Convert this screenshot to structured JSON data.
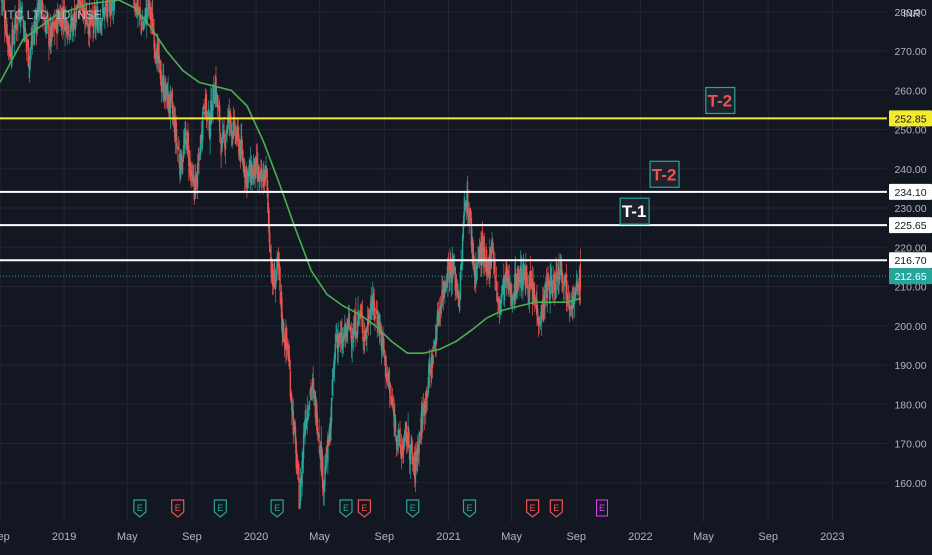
{
  "symbol_label": "ITC LTD, 1D, NSE",
  "currency": "INR",
  "colors": {
    "background": "#131722",
    "grid": "#242733",
    "up": "#26a69a",
    "down": "#ef5350",
    "ma": "#4caf50",
    "axis_text": "#b2b5be",
    "last_price": "#26a69a",
    "yellow": "#f5ea2b",
    "white": "#ffffff",
    "earnings_green": "#26a69a",
    "earnings_red": "#ef5350",
    "earnings_pink": "#e040fb"
  },
  "chart_data": {
    "type": "candlestick",
    "ylim": [
      150,
      283
    ],
    "y_ticks": [
      160,
      170,
      180,
      190,
      200,
      210,
      220,
      230,
      240,
      250,
      260,
      270,
      280
    ],
    "y_tick_labels": [
      "160.00",
      "170.00",
      "180.00",
      "190.00",
      "200.00",
      "210.00",
      "220.00",
      "230.00",
      "240.00",
      "250.00",
      "260.00",
      "270.00",
      "280.00"
    ],
    "x_range": [
      "2018-09-01",
      "2023-04-15"
    ],
    "x_ticks": [
      {
        "date": "2018-09-01",
        "label": "Sep"
      },
      {
        "date": "2019-01-01",
        "label": "2019"
      },
      {
        "date": "2019-05-01",
        "label": "May"
      },
      {
        "date": "2019-09-01",
        "label": "Sep"
      },
      {
        "date": "2020-01-01",
        "label": "2020"
      },
      {
        "date": "2020-05-01",
        "label": "May"
      },
      {
        "date": "2020-09-01",
        "label": "Sep"
      },
      {
        "date": "2021-01-01",
        "label": "2021"
      },
      {
        "date": "2021-05-01",
        "label": "May"
      },
      {
        "date": "2021-09-01",
        "label": "Sep"
      },
      {
        "date": "2022-01-01",
        "label": "2022"
      },
      {
        "date": "2022-05-01",
        "label": "May"
      },
      {
        "date": "2022-09-01",
        "label": "Sep"
      },
      {
        "date": "2023-01-01",
        "label": "2023"
      }
    ],
    "price_path": [
      [
        "2018-09-03",
        284
      ],
      [
        "2018-09-20",
        270
      ],
      [
        "2018-10-10",
        282
      ],
      [
        "2018-10-26",
        268
      ],
      [
        "2018-11-15",
        283
      ],
      [
        "2018-12-05",
        273
      ],
      [
        "2018-12-26",
        280
      ],
      [
        "2019-01-15",
        276
      ],
      [
        "2019-02-01",
        284
      ],
      [
        "2019-02-20",
        276
      ],
      [
        "2019-03-10",
        279
      ],
      [
        "2019-03-25",
        281
      ],
      [
        "2019-04-05",
        283
      ],
      [
        "2019-04-20",
        292
      ],
      [
        "2019-05-01",
        297
      ],
      [
        "2019-05-15",
        283
      ],
      [
        "2019-05-31",
        276
      ],
      [
        "2019-06-10",
        282
      ],
      [
        "2019-06-20",
        275
      ],
      [
        "2019-07-05",
        262
      ],
      [
        "2019-07-25",
        255
      ],
      [
        "2019-08-10",
        241
      ],
      [
        "2019-08-22",
        248
      ],
      [
        "2019-09-02",
        235
      ],
      [
        "2019-09-12",
        238
      ],
      [
        "2019-09-24",
        258
      ],
      [
        "2019-10-04",
        251
      ],
      [
        "2019-10-15",
        262
      ],
      [
        "2019-10-28",
        245
      ],
      [
        "2019-11-10",
        253
      ],
      [
        "2019-11-28",
        247
      ],
      [
        "2019-12-15",
        238
      ],
      [
        "2019-12-31",
        240
      ],
      [
        "2020-01-10",
        236
      ],
      [
        "2020-01-20",
        239
      ],
      [
        "2020-02-01",
        210
      ],
      [
        "2020-02-12",
        215
      ],
      [
        "2020-02-20",
        200
      ],
      [
        "2020-03-02",
        193
      ],
      [
        "2020-03-12",
        175
      ],
      [
        "2020-03-24",
        155
      ],
      [
        "2020-04-02",
        175
      ],
      [
        "2020-04-15",
        185
      ],
      [
        "2020-04-28",
        175
      ],
      [
        "2020-05-08",
        160
      ],
      [
        "2020-05-20",
        172
      ],
      [
        "2020-06-01",
        198
      ],
      [
        "2020-06-12",
        195
      ],
      [
        "2020-06-25",
        200
      ],
      [
        "2020-07-05",
        198
      ],
      [
        "2020-07-15",
        203
      ],
      [
        "2020-07-28",
        197
      ],
      [
        "2020-08-05",
        206
      ],
      [
        "2020-08-20",
        202
      ],
      [
        "2020-09-01",
        192
      ],
      [
        "2020-09-12",
        182
      ],
      [
        "2020-09-22",
        175
      ],
      [
        "2020-10-02",
        168
      ],
      [
        "2020-10-15",
        172
      ],
      [
        "2020-10-28",
        163
      ],
      [
        "2020-11-10",
        175
      ],
      [
        "2020-11-22",
        185
      ],
      [
        "2020-12-02",
        192
      ],
      [
        "2020-12-15",
        205
      ],
      [
        "2020-12-31",
        215
      ],
      [
        "2021-01-10",
        214
      ],
      [
        "2021-01-22",
        207
      ],
      [
        "2021-02-02",
        234
      ],
      [
        "2021-02-10",
        228
      ],
      [
        "2021-02-20",
        213
      ],
      [
        "2021-03-05",
        220
      ],
      [
        "2021-03-15",
        212
      ],
      [
        "2021-03-25",
        222
      ],
      [
        "2021-04-05",
        204
      ],
      [
        "2021-04-20",
        212
      ],
      [
        "2021-05-01",
        208
      ],
      [
        "2021-05-15",
        213
      ],
      [
        "2021-05-28",
        212
      ],
      [
        "2021-06-10",
        208
      ],
      [
        "2021-06-24",
        202
      ],
      [
        "2021-07-08",
        210
      ],
      [
        "2021-07-20",
        210
      ],
      [
        "2021-08-02",
        216
      ],
      [
        "2021-08-15",
        209
      ],
      [
        "2021-08-28",
        206
      ],
      [
        "2021-09-10",
        213
      ]
    ],
    "moving_average_path": [
      [
        "2018-09-01",
        262
      ],
      [
        "2018-10-15",
        273
      ],
      [
        "2018-12-15",
        279
      ],
      [
        "2019-02-15",
        282
      ],
      [
        "2019-04-15",
        283
      ],
      [
        "2019-05-15",
        281
      ],
      [
        "2019-06-15",
        276
      ],
      [
        "2019-07-15",
        270
      ],
      [
        "2019-08-15",
        265
      ],
      [
        "2019-09-15",
        262
      ],
      [
        "2019-10-15",
        261
      ],
      [
        "2019-11-15",
        260
      ],
      [
        "2019-12-15",
        256
      ],
      [
        "2020-01-15",
        247
      ],
      [
        "2020-02-15",
        236
      ],
      [
        "2020-03-15",
        225
      ],
      [
        "2020-04-15",
        214
      ],
      [
        "2020-05-15",
        208
      ],
      [
        "2020-06-15",
        205
      ],
      [
        "2020-07-15",
        203
      ],
      [
        "2020-08-15",
        200
      ],
      [
        "2020-09-15",
        196
      ],
      [
        "2020-10-15",
        193
      ],
      [
        "2020-11-15",
        193
      ],
      [
        "2020-12-15",
        194
      ],
      [
        "2021-01-15",
        196
      ],
      [
        "2021-02-15",
        199
      ],
      [
        "2021-03-15",
        202
      ],
      [
        "2021-04-15",
        204
      ],
      [
        "2021-05-15",
        205
      ],
      [
        "2021-06-15",
        206
      ],
      [
        "2021-07-15",
        206
      ],
      [
        "2021-08-15",
        206
      ],
      [
        "2021-09-10",
        207
      ]
    ],
    "horizontal_lines": [
      {
        "price": 252.85,
        "label": "252.85",
        "color": "#f5ea2b",
        "label_bg": "#f5ea2b",
        "label_fg": "#131722"
      },
      {
        "price": 234.1,
        "label": "234.10",
        "color": "#ffffff",
        "label_bg": "#ffffff",
        "label_fg": "#131722"
      },
      {
        "price": 225.65,
        "label": "225.65",
        "color": "#ffffff",
        "label_bg": "#ffffff",
        "label_fg": "#131722"
      },
      {
        "price": 216.7,
        "label": "216.70",
        "color": "#ffffff",
        "label_bg": "#ffffff",
        "label_fg": "#131722"
      }
    ],
    "last_price": {
      "price": 212.65,
      "label": "212.65"
    },
    "annotations": [
      {
        "text": "T-2",
        "date": "2022-06-01",
        "price": 257.4,
        "color": "#ef5350"
      },
      {
        "text": "T-2",
        "date": "2022-02-15",
        "price": 238.6,
        "color": "#ef5350"
      },
      {
        "text": "T-1",
        "date": "2021-12-20",
        "price": 229.2,
        "color": "#ffffff"
      }
    ],
    "earnings_markers": [
      {
        "date": "2019-05-25",
        "kind": "green"
      },
      {
        "date": "2019-08-05",
        "kind": "red"
      },
      {
        "date": "2019-10-25",
        "kind": "green"
      },
      {
        "date": "2020-02-10",
        "kind": "green"
      },
      {
        "date": "2020-06-20",
        "kind": "green"
      },
      {
        "date": "2020-07-25",
        "kind": "red"
      },
      {
        "date": "2020-10-25",
        "kind": "green"
      },
      {
        "date": "2021-02-10",
        "kind": "green"
      },
      {
        "date": "2021-06-10",
        "kind": "red"
      },
      {
        "date": "2021-07-25",
        "kind": "red"
      },
      {
        "date": "2021-10-20",
        "kind": "pink"
      }
    ],
    "earnings_label": "E"
  }
}
